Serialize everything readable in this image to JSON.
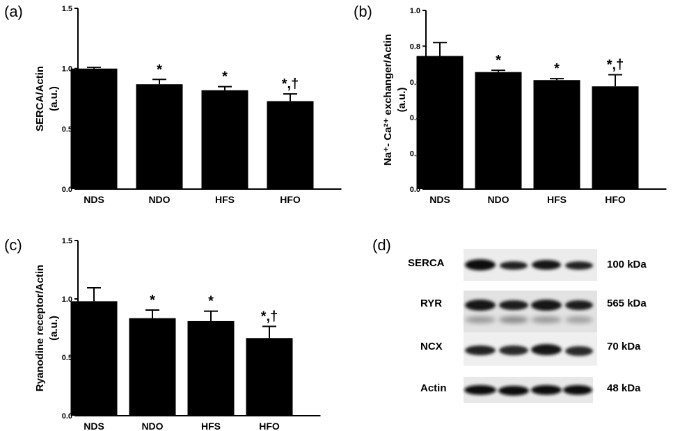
{
  "panels": {
    "a": "(a)",
    "b": "(b)",
    "c": "(c)",
    "d": "(d)"
  },
  "chart_data": [
    {
      "type": "bar",
      "panel": "(a)",
      "categories": [
        "NDS",
        "NDO",
        "HFS",
        "HFO"
      ],
      "values": [
        1.0,
        0.87,
        0.82,
        0.73
      ],
      "errors": [
        0.01,
        0.04,
        0.03,
        0.06
      ],
      "annotations": [
        "",
        "*",
        "*",
        "*,†"
      ],
      "ylabel": [
        "SERCA/Actin",
        "(a.u.)"
      ],
      "ylim": [
        0,
        1.5
      ],
      "yticks": [
        "0.0",
        "0.5",
        "1.0",
        "1.5"
      ]
    },
    {
      "type": "bar",
      "panel": "(b)",
      "categories": [
        "NDS",
        "NDO",
        "HFS",
        "HFO"
      ],
      "values": [
        0.745,
        0.655,
        0.61,
        0.575
      ],
      "errors": [
        0.075,
        0.01,
        0.008,
        0.065
      ],
      "annotations": [
        "",
        "*",
        "*",
        "*,†"
      ],
      "ylabel": [
        "Na⁺- Ca²⁺ exchanger/Actin",
        "(a.u.)"
      ],
      "ylim": [
        0,
        1.0
      ],
      "yticks": [
        "0.0",
        "0.2",
        "0.4",
        "0.6",
        "0.8",
        "1.0"
      ]
    },
    {
      "type": "bar",
      "panel": "(c)",
      "categories": [
        "NDS",
        "NDO",
        "HFS",
        "HFO"
      ],
      "values": [
        0.98,
        0.835,
        0.81,
        0.665
      ],
      "errors": [
        0.115,
        0.07,
        0.085,
        0.1
      ],
      "annotations": [
        "",
        "*",
        "*",
        "*,†"
      ],
      "ylabel": [
        "Ryanodine receptor/Actin",
        "(a.u.)"
      ],
      "ylim": [
        0,
        1.5
      ],
      "yticks": [
        "0.0",
        "0.5",
        "1.0",
        "1.5"
      ]
    }
  ],
  "blot": {
    "rows": [
      {
        "label": "SERCA",
        "kda": "100 kDa"
      },
      {
        "label": "RYR",
        "kda": "565 kDa"
      },
      {
        "label": "NCX",
        "kda": "70 kDa"
      },
      {
        "label": "Actin",
        "kda": "48 kDa"
      }
    ]
  }
}
